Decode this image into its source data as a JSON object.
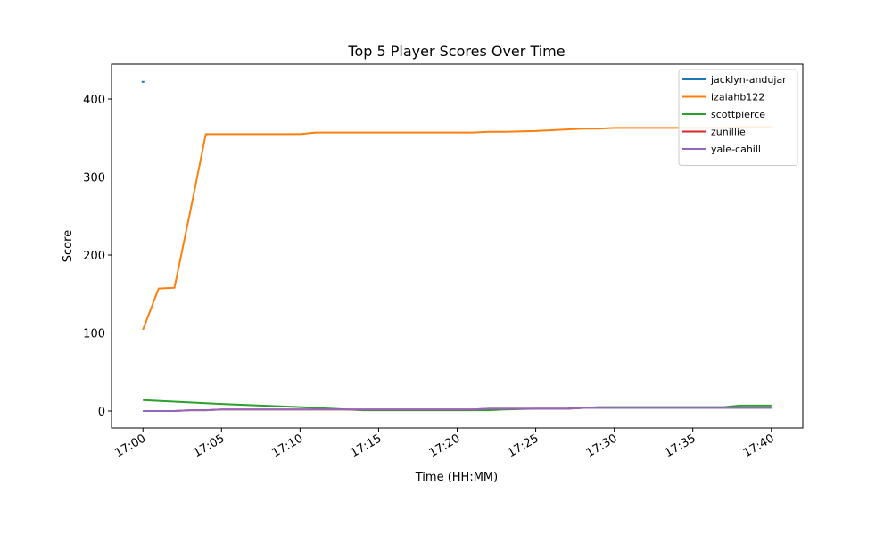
{
  "chart_data": {
    "type": "line",
    "title": "Top 5 Player Scores Over Time",
    "x_label": "Time (HH:MM)",
    "y_label": "Score",
    "x": [
      "17:00",
      "17:01",
      "17:02",
      "17:03",
      "17:04",
      "17:05",
      "17:10",
      "17:11",
      "17:14",
      "17:15",
      "17:20",
      "17:21",
      "17:22",
      "17:23",
      "17:25",
      "17:27",
      "17:28",
      "17:29",
      "17:30",
      "17:35",
      "17:37",
      "17:38",
      "17:40"
    ],
    "series": [
      {
        "name": "jacklyn-andujar",
        "color": "#1f77b4",
        "values": [
          422,
          null,
          null,
          null,
          null,
          null,
          null,
          null,
          null,
          null,
          null,
          null,
          null,
          null,
          null,
          null,
          null,
          null,
          null,
          null,
          null,
          null,
          null
        ]
      },
      {
        "name": "izaiahb122",
        "color": "#ff7f0e",
        "values": [
          104,
          157,
          158,
          255,
          355,
          355,
          355,
          357,
          357,
          357,
          357,
          357,
          358,
          358,
          359,
          361,
          362,
          362,
          363,
          363,
          363,
          364,
          364
        ]
      },
      {
        "name": "scottpierce",
        "color": "#2ca02c",
        "values": [
          14,
          13,
          12,
          11,
          10,
          9,
          5,
          4,
          1,
          1,
          1,
          1,
          1,
          2,
          3,
          3,
          4,
          5,
          5,
          5,
          5,
          7,
          7
        ]
      },
      {
        "name": "zunillie",
        "color": "#d62728",
        "values": [
          0,
          0,
          0,
          1,
          1,
          2,
          2,
          2,
          2,
          2,
          2,
          2,
          3,
          3,
          3,
          3,
          4,
          4,
          4,
          4,
          4,
          4,
          4
        ]
      },
      {
        "name": "yale-cahill",
        "color": "#9467bd",
        "values": [
          0,
          0,
          0,
          1,
          1,
          2,
          2,
          2,
          2,
          2,
          2,
          2,
          3,
          3,
          3,
          3,
          4,
          4,
          4,
          4,
          4,
          4,
          4
        ]
      }
    ],
    "xlim": [
      "16:58",
      "17:42"
    ],
    "xticks": [
      "17:00",
      "17:05",
      "17:10",
      "17:15",
      "17:20",
      "17:25",
      "17:30",
      "17:35",
      "17:40"
    ],
    "ylim": [
      -21.7,
      444.6
    ],
    "yticks": [
      0,
      100,
      200,
      300,
      400
    ],
    "grid": false,
    "legend": "upper right"
  }
}
